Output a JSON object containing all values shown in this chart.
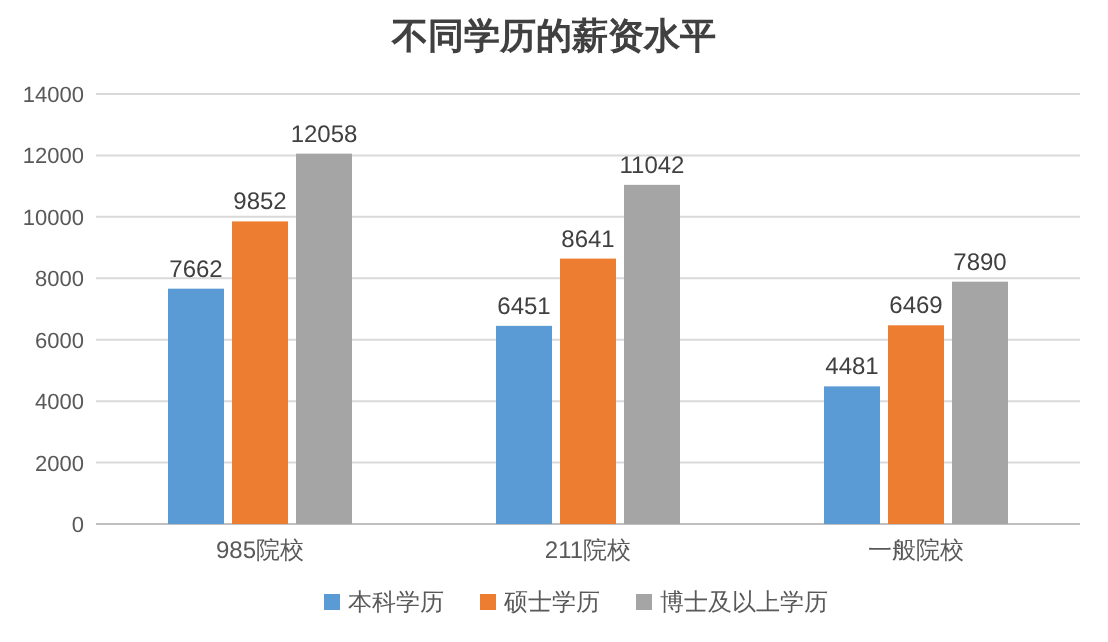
{
  "chart_data": {
    "type": "bar",
    "title": "不同学历的薪资水平",
    "categories": [
      "985院校",
      "211院校",
      "一般院校"
    ],
    "series": [
      {
        "name": "本科学历",
        "color": "#5b9bd5",
        "values": [
          7662,
          6451,
          4481
        ]
      },
      {
        "name": "硕士学历",
        "color": "#ed7d31",
        "values": [
          9852,
          8641,
          6469
        ]
      },
      {
        "name": "博士及以上学历",
        "color": "#a5a5a5",
        "values": [
          12058,
          11042,
          7890
        ]
      }
    ],
    "ylim": [
      0,
      14000
    ],
    "yticks": [
      0,
      2000,
      4000,
      6000,
      8000,
      10000,
      12000,
      14000
    ],
    "grid": "y",
    "legend": "bottom",
    "data_labels": true
  }
}
